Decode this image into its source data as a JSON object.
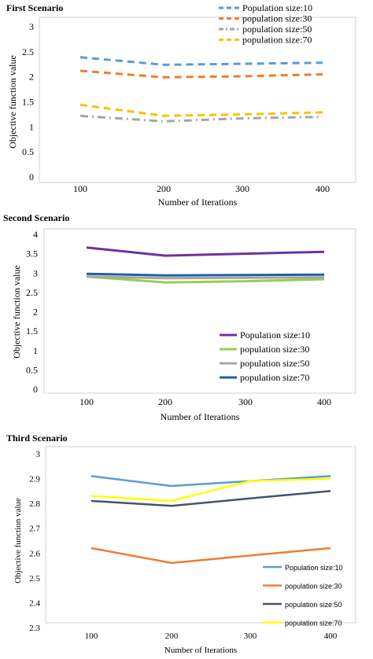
{
  "chart_data": [
    {
      "type": "line",
      "title": "First Scenario",
      "xlabel": "Number of Iterations",
      "ylabel": "Objective function value",
      "categories": [
        "100",
        "200",
        "300",
        "400"
      ],
      "yticks": [
        "0",
        "0.5",
        "1",
        "1.5",
        "2",
        "2.5",
        "3"
      ],
      "ylim": [
        0,
        3
      ],
      "grid": false,
      "legend_position": "top-right",
      "series": [
        {
          "name": "Population size:10",
          "values": [
            2.39,
            2.24,
            2.26,
            2.28
          ],
          "color": "#5b9bd5",
          "dash": "dashed"
        },
        {
          "name": "population size:30",
          "values": [
            2.12,
            1.99,
            2.01,
            2.05
          ],
          "color": "#ed7d31",
          "dash": "dashed"
        },
        {
          "name": "population size:50",
          "values": [
            1.22,
            1.11,
            1.17,
            1.2
          ],
          "color": "#a5a5a5",
          "dash": "dashdot"
        },
        {
          "name": "population size:70",
          "values": [
            1.44,
            1.22,
            1.25,
            1.29
          ],
          "color": "#ffc000",
          "dash": "dashed"
        }
      ]
    },
    {
      "type": "line",
      "title": "Second Scenario",
      "xlabel": "Number of Iterations",
      "ylabel": "Objective function value",
      "categories": [
        "100",
        "200",
        "300",
        "400"
      ],
      "yticks": [
        "0",
        "0.5",
        "1",
        "1.5",
        "2",
        "2.5",
        "3",
        "3.5",
        "4"
      ],
      "ylim": [
        0,
        4
      ],
      "grid": false,
      "legend_position": "bottom-right",
      "series": [
        {
          "name": "Population size:10",
          "values": [
            3.66,
            3.45,
            3.5,
            3.55
          ],
          "color": "#7030a0",
          "dash": "solid"
        },
        {
          "name": "population size:30",
          "values": [
            2.91,
            2.76,
            2.79,
            2.84
          ],
          "color": "#92d050",
          "dash": "solid"
        },
        {
          "name": "population size:50",
          "values": [
            2.91,
            2.87,
            2.88,
            2.89
          ],
          "color": "#a5a5a5",
          "dash": "solid"
        },
        {
          "name": "population size:70",
          "values": [
            2.98,
            2.94,
            2.95,
            2.96
          ],
          "color": "#1f5fa6",
          "dash": "solid"
        }
      ]
    },
    {
      "type": "line",
      "title": "Third Scenario",
      "xlabel": "Number of Iterations",
      "ylabel": "Objective function value",
      "categories": [
        "100",
        "200",
        "300",
        "400"
      ],
      "yticks": [
        "2.3",
        "2.4",
        "2.5",
        "2.6",
        "2.7",
        "2.8",
        "2.9",
        "3"
      ],
      "ylim": [
        2.3,
        3
      ],
      "grid": false,
      "legend_position": "bottom-right",
      "series": [
        {
          "name": "Population size:10",
          "values": [
            2.91,
            2.87,
            2.89,
            2.91
          ],
          "color": "#5b9bd5",
          "dash": "solid"
        },
        {
          "name": "population size:30",
          "values": [
            2.62,
            2.56,
            2.59,
            2.62
          ],
          "color": "#ed7d31",
          "dash": "solid"
        },
        {
          "name": "population size:50",
          "values": [
            2.81,
            2.79,
            2.82,
            2.85
          ],
          "color": "#44546a",
          "dash": "solid"
        },
        {
          "name": "population size:70",
          "values": [
            2.83,
            2.81,
            2.89,
            2.9
          ],
          "color": "#ffff00",
          "dash": "solid"
        }
      ]
    }
  ]
}
